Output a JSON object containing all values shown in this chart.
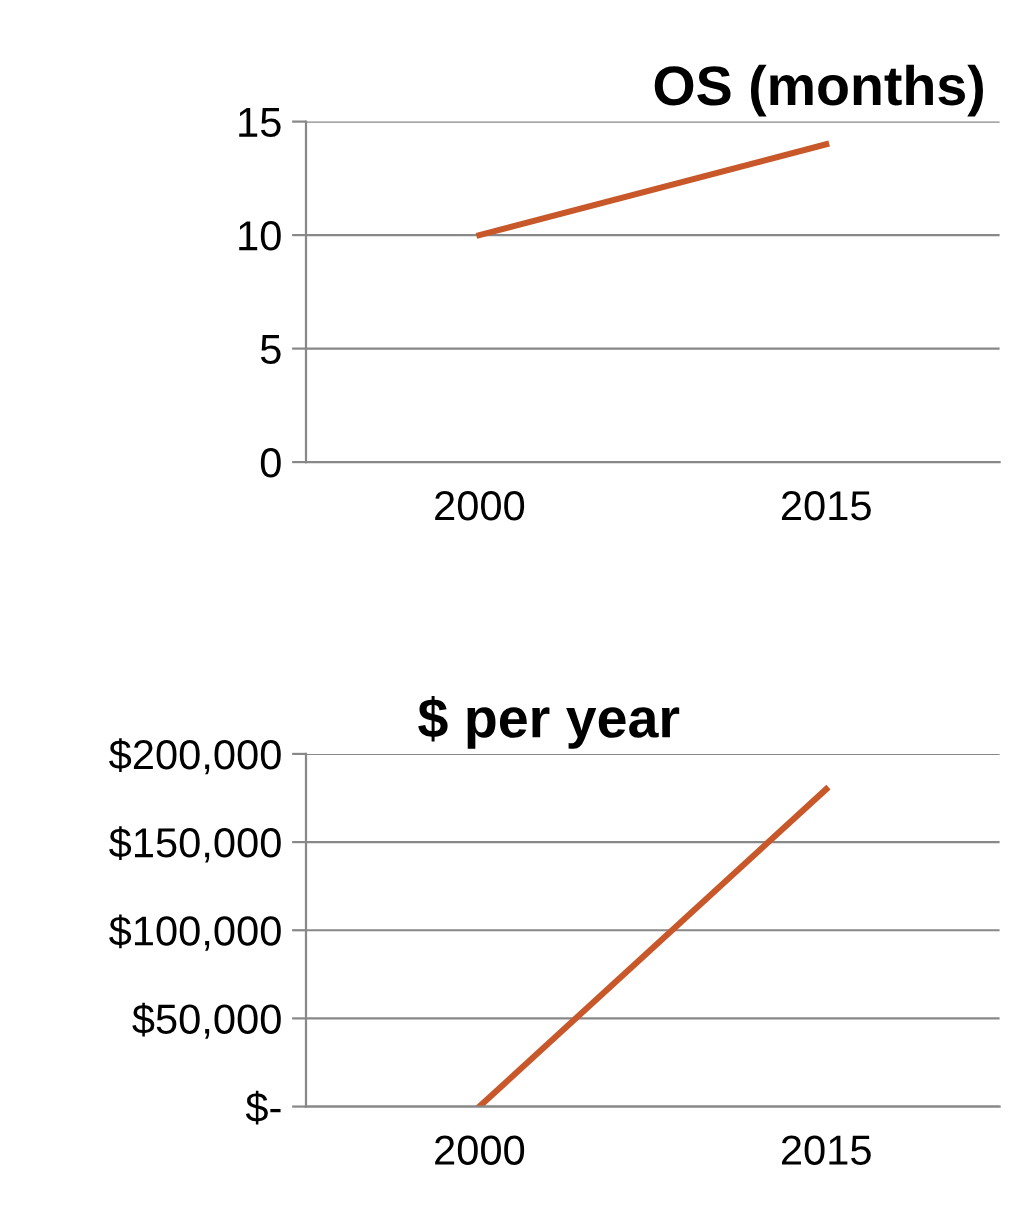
{
  "chart_data": [
    {
      "type": "line",
      "title": "OS (months)",
      "categories": [
        "2000",
        "2015"
      ],
      "series": [
        {
          "color": "#c8582a",
          "values": [
            10,
            14
          ]
        }
      ],
      "ylim": [
        0,
        15
      ],
      "yticks": [
        0,
        5,
        10,
        15
      ],
      "grid": "y",
      "legend": false,
      "marker": "none",
      "line_style": "solid"
    },
    {
      "type": "line",
      "title": "$ per year",
      "categories": [
        "2000",
        "2015"
      ],
      "series": [
        {
          "color": "#c8582a",
          "values": [
            0,
            180000
          ]
        }
      ],
      "ylim": [
        0,
        200000
      ],
      "yticks": [
        {
          "value": 0,
          "label": "$-"
        },
        {
          "value": 50000,
          "label": "$50,000"
        },
        {
          "value": 100000,
          "label": "$100,000"
        },
        {
          "value": 150000,
          "label": "$150,000"
        },
        {
          "value": 200000,
          "label": "$200,000"
        }
      ],
      "grid": "y",
      "legend": false,
      "marker": "none",
      "line_style": "solid"
    }
  ]
}
